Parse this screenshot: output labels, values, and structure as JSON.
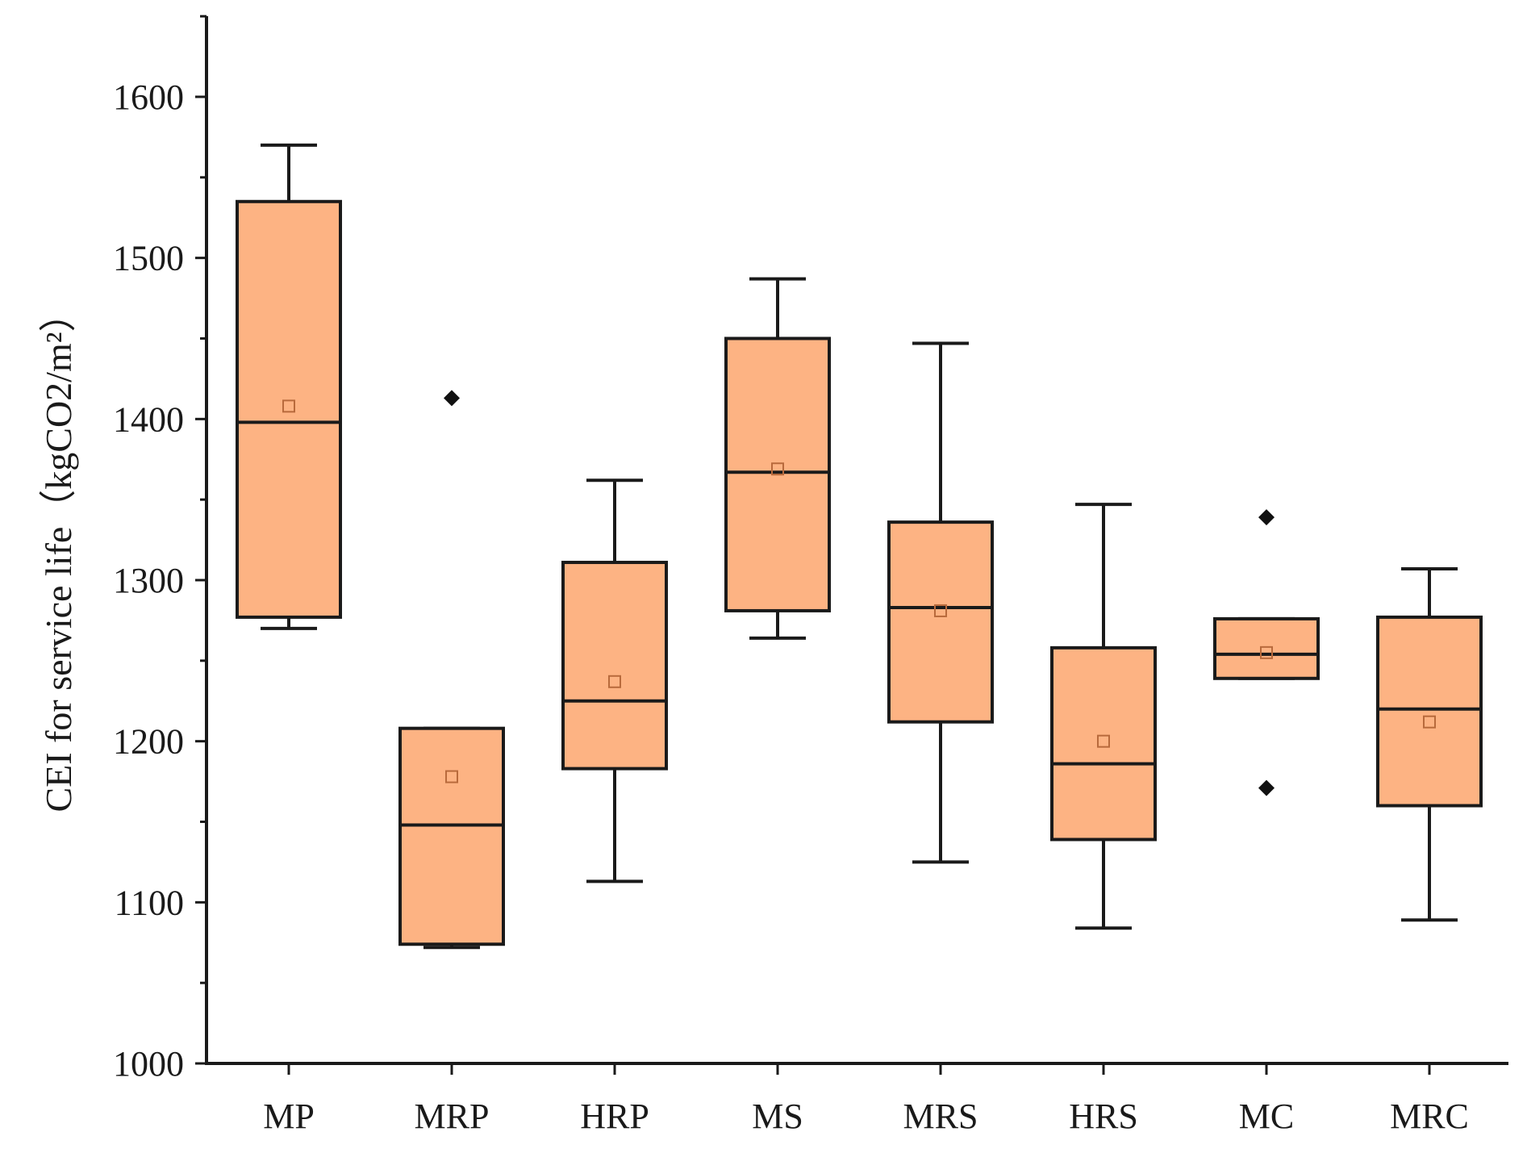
{
  "chart_data": {
    "type": "box",
    "title": "",
    "xlabel": "",
    "ylabel": "CEI for service life（kgCO2/m²）",
    "ylim": [
      1000,
      1650
    ],
    "yticks": [
      1000,
      1100,
      1200,
      1300,
      1400,
      1500,
      1600
    ],
    "box_color": "#FDB383",
    "categories": [
      "MP",
      "MRP",
      "HRP",
      "MS",
      "MRS",
      "HRS",
      "MC",
      "MRC"
    ],
    "boxes": [
      {
        "category": "MP",
        "min": 1270,
        "q1": 1277,
        "median": 1398,
        "q3": 1535,
        "max": 1570,
        "mean": 1408,
        "outliers": []
      },
      {
        "category": "MRP",
        "min": 1072,
        "q1": 1074,
        "median": 1148,
        "q3": 1208,
        "max": 1208,
        "mean": 1178,
        "outliers": [
          1413
        ]
      },
      {
        "category": "HRP",
        "min": 1113,
        "q1": 1183,
        "median": 1225,
        "q3": 1311,
        "max": 1362,
        "mean": 1237,
        "outliers": []
      },
      {
        "category": "MS",
        "min": 1264,
        "q1": 1281,
        "median": 1367,
        "q3": 1450,
        "max": 1487,
        "mean": 1369,
        "outliers": []
      },
      {
        "category": "MRS",
        "min": 1125,
        "q1": 1212,
        "median": 1283,
        "q3": 1336,
        "max": 1447,
        "mean": 1281,
        "outliers": []
      },
      {
        "category": "HRS",
        "min": 1084,
        "q1": 1139,
        "median": 1186,
        "q3": 1258,
        "max": 1347,
        "mean": 1200,
        "outliers": []
      },
      {
        "category": "MC",
        "min": 1239,
        "q1": 1239,
        "median": 1254,
        "q3": 1276,
        "max": 1276,
        "mean": 1255,
        "outliers": [
          1339,
          1171
        ]
      },
      {
        "category": "MRC",
        "min": 1089,
        "q1": 1160,
        "median": 1220,
        "q3": 1277,
        "max": 1307,
        "mean": 1212,
        "outliers": []
      }
    ]
  }
}
